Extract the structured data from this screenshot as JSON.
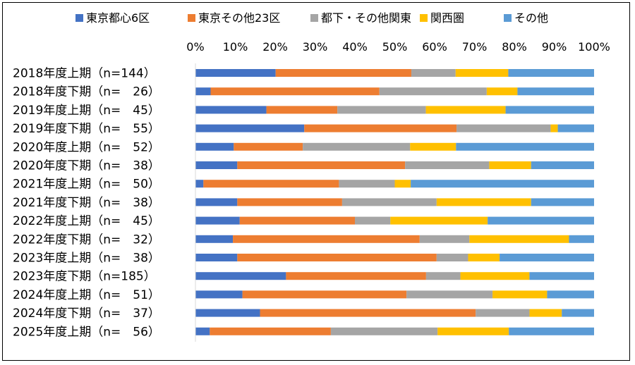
{
  "chart_data": {
    "type": "bar",
    "orientation": "horizontal",
    "stacked": "percent",
    "title": "",
    "xlabel": "",
    "ylabel": "",
    "xlim": [
      0,
      100
    ],
    "x_ticks": [
      "0%",
      "10%",
      "20%",
      "30%",
      "40%",
      "50%",
      "60%",
      "70%",
      "80%",
      "90%",
      "100%"
    ],
    "grid": false,
    "legend_position": "top",
    "categories": [
      "2018年度上期（n=144）",
      "2018年度下期（n=　26）",
      "2019年度上期（n=　45）",
      "2019年度下期（n=　55）",
      "2020年度上期（n=　52）",
      "2020年度下期（n=　38）",
      "2021年度上期（n=　50）",
      "2021年度下期（n=　38）",
      "2022年度上期（n=　45）",
      "2022年度下期（n=　32）",
      "2023年度上期（n=　38）",
      "2023年度下期（n=185）",
      "2024年度上期（n=　51）",
      "2024年度下期（n=　37）",
      "2025年度上期（n=　56）"
    ],
    "series": [
      {
        "name": "東京都心6区",
        "color": "#4472C4",
        "values": [
          20.1,
          3.8,
          17.8,
          27.3,
          9.6,
          10.5,
          2.0,
          10.5,
          11.1,
          9.4,
          10.5,
          22.7,
          11.8,
          16.2,
          3.6
        ]
      },
      {
        "name": "東京その他23区",
        "color": "#ED7D31",
        "values": [
          34.0,
          42.3,
          17.8,
          38.2,
          17.3,
          42.1,
          34.0,
          26.3,
          28.9,
          46.9,
          50.0,
          35.1,
          41.2,
          54.1,
          30.4
        ]
      },
      {
        "name": "都下・その他関東",
        "color": "#A5A5A5",
        "values": [
          11.1,
          26.9,
          22.2,
          23.6,
          26.9,
          21.1,
          14.0,
          23.7,
          8.9,
          12.5,
          7.9,
          8.6,
          21.6,
          13.5,
          26.8
        ]
      },
      {
        "name": "関西圏",
        "color": "#FFC000",
        "values": [
          13.2,
          7.7,
          20.0,
          1.8,
          11.5,
          10.5,
          4.0,
          23.7,
          24.4,
          25.0,
          7.9,
          17.3,
          13.7,
          8.1,
          17.9
        ]
      },
      {
        "name": "その他",
        "color": "#5B9BD5",
        "values": [
          21.5,
          19.2,
          22.2,
          9.1,
          34.6,
          15.8,
          46.0,
          15.8,
          26.7,
          6.3,
          23.7,
          16.2,
          11.8,
          8.1,
          21.4
        ]
      }
    ]
  }
}
